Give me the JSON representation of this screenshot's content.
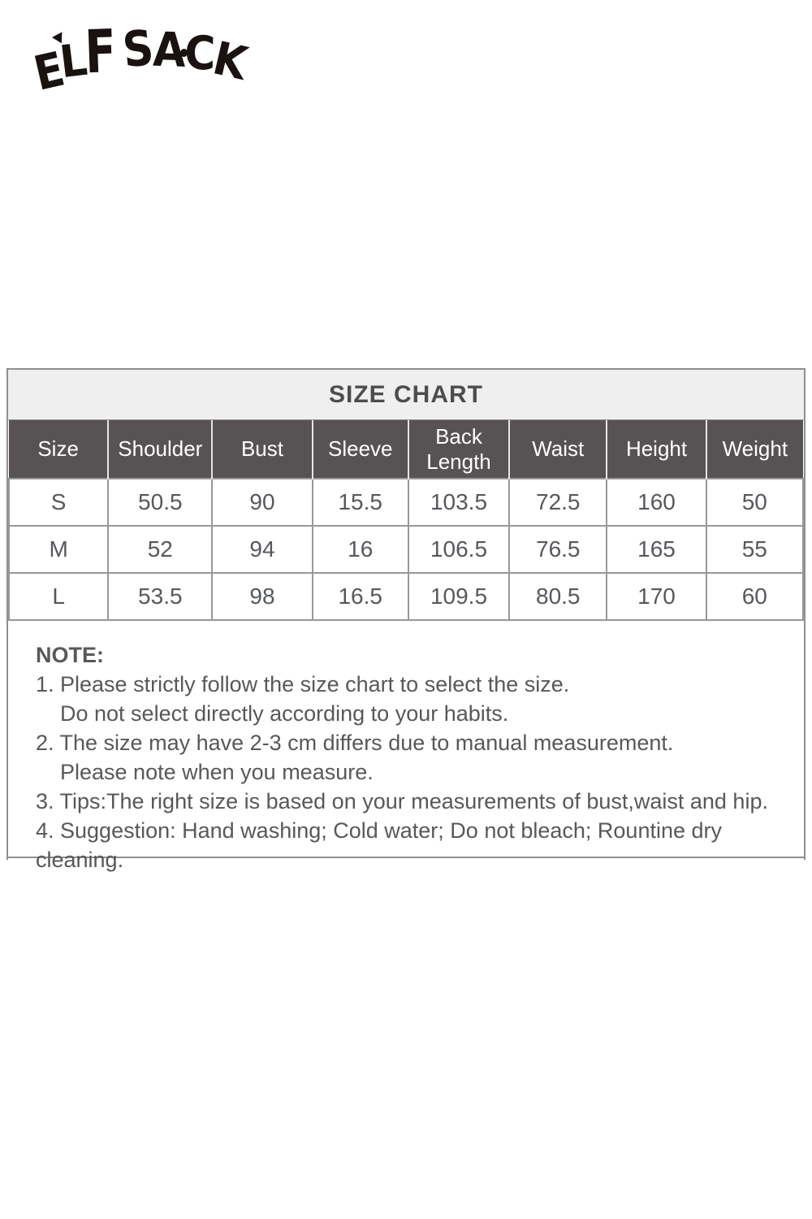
{
  "brand": {
    "name": "ELF SACK"
  },
  "size_chart": {
    "title": "SIZE CHART",
    "columns": [
      "Size",
      "Shoulder",
      "Bust",
      "Sleeve",
      "Back Length",
      "Waist",
      "Height",
      "Weight"
    ],
    "rows": [
      [
        "S",
        "50.5",
        "90",
        "15.5",
        "103.5",
        "72.5",
        "160",
        "50"
      ],
      [
        "M",
        "52",
        "94",
        "16",
        "106.5",
        "76.5",
        "165",
        "55"
      ],
      [
        "L",
        "53.5",
        "98",
        "16.5",
        "109.5",
        "80.5",
        "170",
        "60"
      ]
    ]
  },
  "note": {
    "heading": "NOTE:",
    "lines": [
      {
        "text": "1. Please strictly follow the size chart to select the size.",
        "indent": false
      },
      {
        "text": "Do not select directly according to your habits.",
        "indent": true
      },
      {
        "text": "2. The size may have 2-3 cm differs due to manual measurement.",
        "indent": false
      },
      {
        "text": "Please note when you measure.",
        "indent": true
      },
      {
        "text": "3. Tips:The right size is based on your measurements of bust,waist and hip.",
        "indent": false
      },
      {
        "text": "4. Suggestion: Hand washing; Cold water; Do not bleach; Rountine dry cleaning.",
        "indent": false
      }
    ]
  },
  "colors": {
    "header_bg": "#575254",
    "header_text": "#ffffff",
    "title_bg": "#efefef",
    "title_text": "#4d4d4d",
    "grid_border": "#8f8f8f",
    "body_text": "#55585c",
    "logo": "#191210"
  }
}
